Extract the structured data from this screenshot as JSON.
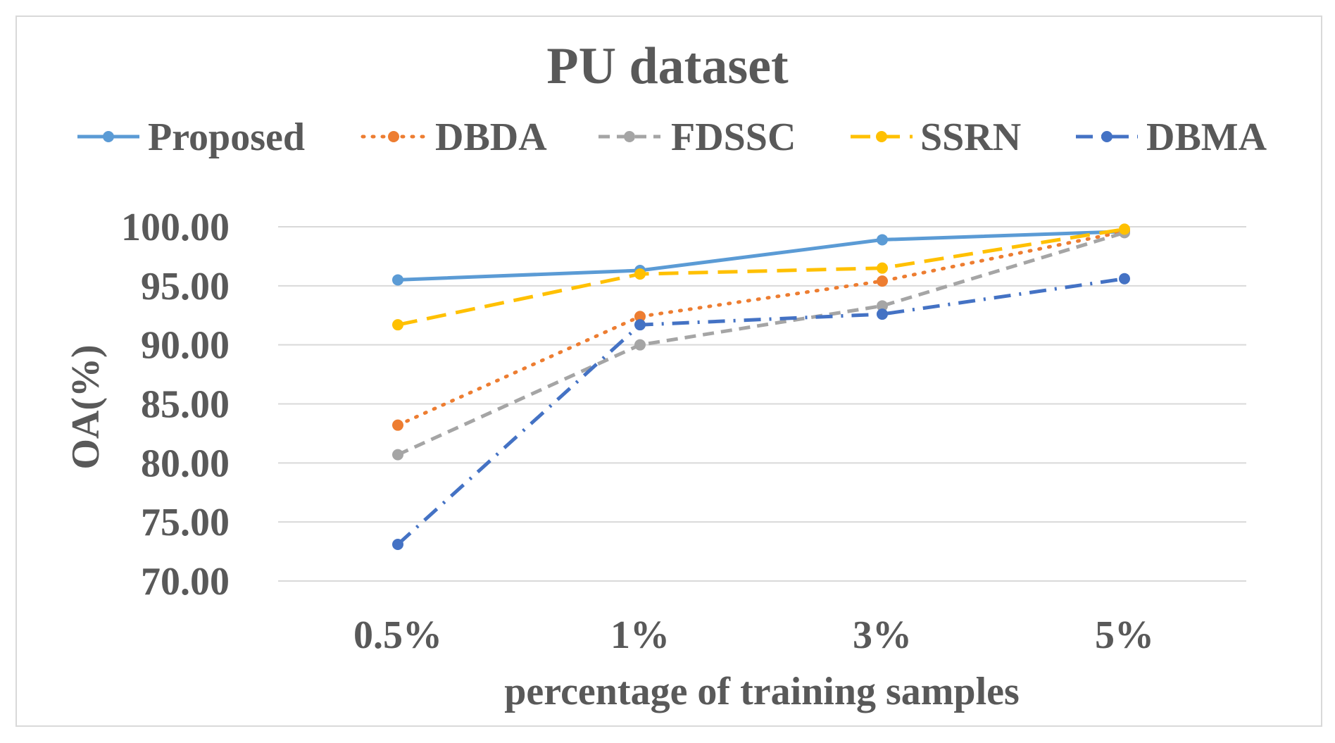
{
  "chart_data": {
    "type": "line",
    "title": "PU dataset",
    "xlabel": "percentage of training samples",
    "ylabel": "OA(%)",
    "categories": [
      "0.5%",
      "1%",
      "3%",
      "5%"
    ],
    "ylim": [
      70,
      100
    ],
    "yticks": [
      "70.00",
      "75.00",
      "80.00",
      "85.00",
      "90.00",
      "95.00",
      "100.00"
    ],
    "ytick_values": [
      70,
      75,
      80,
      85,
      90,
      95,
      100
    ],
    "grid": "horizontal",
    "legend_position": "top",
    "series": [
      {
        "name": "Proposed",
        "values": [
          95.5,
          96.3,
          98.9,
          99.6
        ],
        "color": "#5b9bd5",
        "dash": "solid"
      },
      {
        "name": "DBDA",
        "values": [
          83.2,
          92.4,
          95.4,
          99.6
        ],
        "color": "#ed7d31",
        "dash": "dot"
      },
      {
        "name": "FDSSC",
        "values": [
          80.7,
          90.0,
          93.3,
          99.5
        ],
        "color": "#a5a5a5",
        "dash": "dash"
      },
      {
        "name": "SSRN",
        "values": [
          91.7,
          96.0,
          96.5,
          99.8
        ],
        "color": "#ffc000",
        "dash": "longdash"
      },
      {
        "name": "DBMA",
        "values": [
          73.1,
          91.7,
          92.6,
          95.6
        ],
        "color": "#4472c4",
        "dash": "dashdot"
      }
    ]
  }
}
